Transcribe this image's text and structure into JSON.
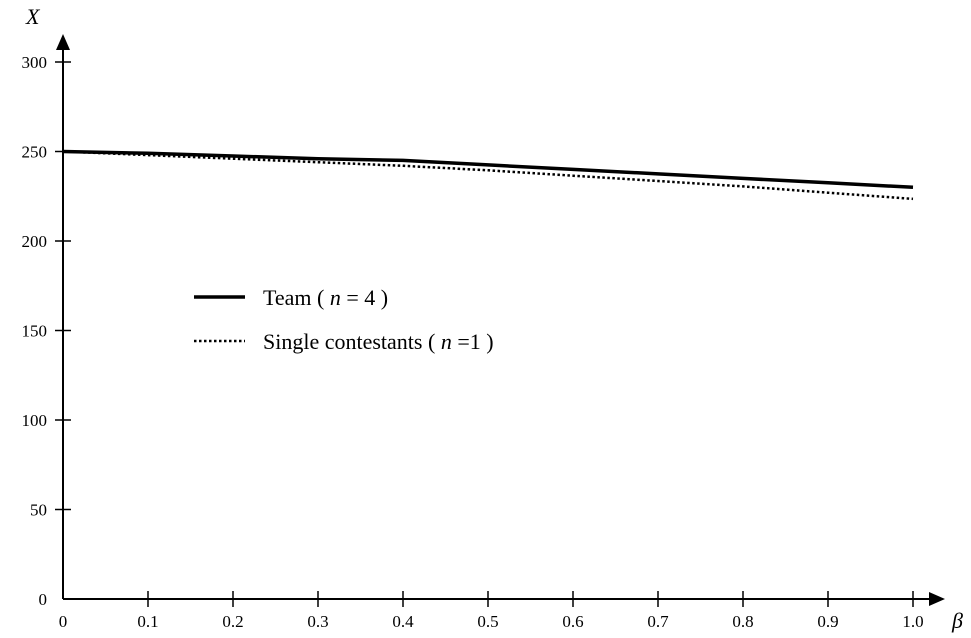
{
  "chart_data": {
    "type": "line",
    "title": "",
    "xlabel": "β",
    "ylabel": "X",
    "xlim": [
      0,
      1.0
    ],
    "ylim": [
      0,
      300
    ],
    "x_ticks": [
      "0",
      "0.1",
      "0.2",
      "0.3",
      "0.4",
      "0.5",
      "0.6",
      "0.7",
      "0.8",
      "0.9",
      "1.0"
    ],
    "y_ticks": [
      "0",
      "50",
      "100",
      "150",
      "200",
      "250",
      "300"
    ],
    "grid": false,
    "legend_position": "center-left",
    "series": [
      {
        "name": "Team ( n = 4 )",
        "name_prefix": "Team ( ",
        "name_var": "n",
        "name_suffix": " = 4 )",
        "style": "solid",
        "x": [
          0,
          0.1,
          0.2,
          0.3,
          0.4,
          0.5,
          0.6,
          0.7,
          0.8,
          0.9,
          1.0
        ],
        "values": [
          250,
          249,
          247.5,
          246,
          245,
          242.5,
          240,
          237.5,
          235,
          232.5,
          230
        ]
      },
      {
        "name": "Single contestants ( n =1 )",
        "name_prefix": "Single contestants ( ",
        "name_var": "n",
        "name_suffix": " =1 )",
        "style": "dotted",
        "x": [
          0,
          0.1,
          0.2,
          0.3,
          0.4,
          0.5,
          0.6,
          0.7,
          0.8,
          0.9,
          1.0
        ],
        "values": [
          250,
          248,
          246,
          244,
          242,
          239.5,
          236.5,
          233.5,
          230.5,
          227,
          223.5
        ]
      }
    ]
  }
}
